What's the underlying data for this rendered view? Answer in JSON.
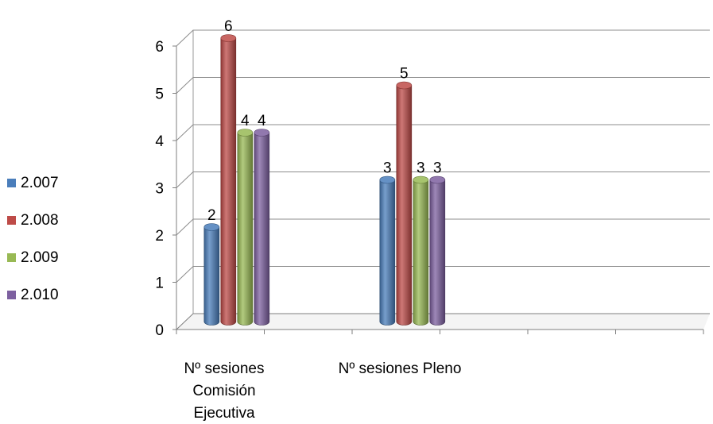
{
  "chart_data": {
    "type": "bar",
    "categories": [
      "Nº sesiones Comisión Ejecutiva",
      "Nº sesiones Pleno"
    ],
    "category_label_lines": [
      [
        "Nº sesiones",
        "Comisión",
        "Ejecutiva"
      ],
      [
        "Nº sesiones Pleno"
      ]
    ],
    "series": [
      {
        "name": "2.007",
        "color": "#4a7ebb",
        "values": [
          2,
          3
        ]
      },
      {
        "name": "2.008",
        "color": "#be4b48",
        "values": [
          6,
          5
        ]
      },
      {
        "name": "2.009",
        "color": "#98b954",
        "values": [
          4,
          3
        ]
      },
      {
        "name": "2.010",
        "color": "#7d60a0",
        "values": [
          4,
          3
        ]
      }
    ],
    "yticks": [
      "0",
      "1",
      "2",
      "3",
      "4",
      "5",
      "6"
    ],
    "ylim": [
      0,
      6
    ],
    "grid": true,
    "legend_position": "left",
    "data_labels": true,
    "style": "3d-cylinder"
  }
}
